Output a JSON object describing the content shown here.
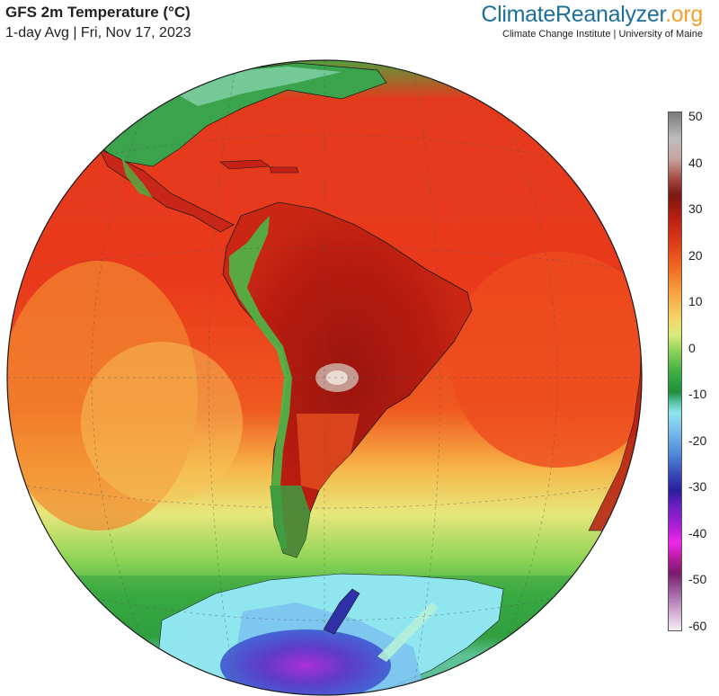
{
  "header": {
    "title": "GFS 2m Temperature (°C)",
    "subtitle": "1-day Avg | Fri, Nov 17, 2023"
  },
  "brand": {
    "part1": "Climate",
    "part2": "Reanalyzer",
    "part3": ".org",
    "tagline": "Climate Change Institute | University of Maine"
  },
  "colorbar": {
    "unit": "°C",
    "ticks": [
      "50",
      "40",
      "30",
      "20",
      "10",
      "0",
      "-10",
      "-20",
      "-30",
      "-40",
      "-50",
      "-60"
    ],
    "max": 50,
    "min": -60
  },
  "map": {
    "projection": "orthographic",
    "center": "South America / South Atlantic",
    "colors": {
      "ocean_hot": "#e8381c",
      "land_hot": "#b5190f",
      "subtropics": "#f4d06a",
      "midlat": "#4db546",
      "antarctica": "#8fe6ee",
      "antarctic_cold": "#5a2cc4"
    }
  }
}
